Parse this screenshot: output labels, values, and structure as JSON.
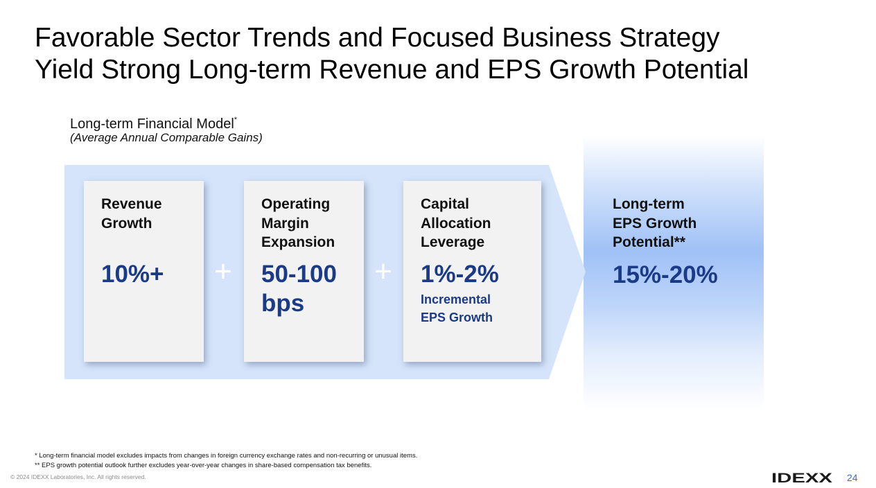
{
  "title": {
    "line1": "Favorable Sector Trends and Focused Business Strategy",
    "line2": "Yield Strong Long-term Revenue and EPS Growth Potential"
  },
  "model": {
    "heading": "Long-term Financial Model",
    "heading_marker": "*",
    "subheading": "(Average Annual Comparable Gains)"
  },
  "cards": [
    {
      "label": [
        "Revenue",
        "Growth"
      ],
      "value": [
        "10%+"
      ],
      "note": []
    },
    {
      "label": [
        "Operating",
        "Margin",
        "Expansion"
      ],
      "value": [
        "50-100",
        "bps"
      ],
      "note": []
    },
    {
      "label": [
        "Capital",
        "Allocation",
        "Leverage"
      ],
      "value": [
        "1%-2%"
      ],
      "note": [
        "Incremental",
        "EPS Growth"
      ]
    }
  ],
  "operators": [
    "+",
    "+"
  ],
  "result": {
    "label": [
      "Long-term",
      "EPS Growth",
      "Potential**"
    ],
    "value": "15%-20%"
  },
  "footnotes": [
    "* Long-term financial model excludes impacts from changes in foreign currency exchange rates and non-recurring or unusual items.",
    "** EPS growth potential outlook further excludes year-over-year changes in share-based compensation tax benefits."
  ],
  "copyright": "© 2024 IDEXX Laboratories, Inc. All rights reserved.",
  "logo_text": "IDEXX",
  "page_number": "24",
  "colors": {
    "accent_value": "#1b3a87",
    "band": "#d5e4fb",
    "result_gradient": "#a0c1f6",
    "page_number": "#2f6fcf"
  }
}
